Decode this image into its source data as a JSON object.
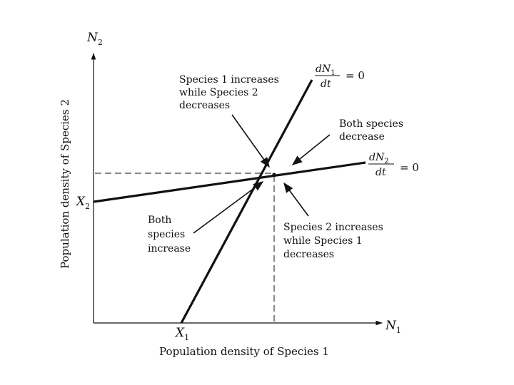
{
  "diagram": {
    "axes": {
      "y_var": "N",
      "y_sub": "2",
      "x_var": "N",
      "x_sub": "1",
      "y_title": "Population density of Species 2",
      "x_title": "Population density of Species 1"
    },
    "intercepts": {
      "x_var": "X",
      "x_sub": "1",
      "y_var": "X",
      "y_sub": "2"
    },
    "isocline1": {
      "num_d": "d",
      "num_n": "N",
      "num_sub": "1",
      "den": "dt",
      "rhs": "= 0"
    },
    "isocline2": {
      "num_d": "d",
      "num_n": "N",
      "num_sub": "2",
      "den": "dt",
      "rhs": "= 0"
    },
    "regions": {
      "sp1_up": [
        "Species 1 increases",
        "while Species 2",
        "decreases"
      ],
      "both_down": [
        "Both species",
        "decrease"
      ],
      "both_up": [
        "Both",
        "species",
        "increase"
      ],
      "sp2_up": [
        "Species 2 increases",
        "while Species 1",
        "decreases"
      ]
    }
  }
}
